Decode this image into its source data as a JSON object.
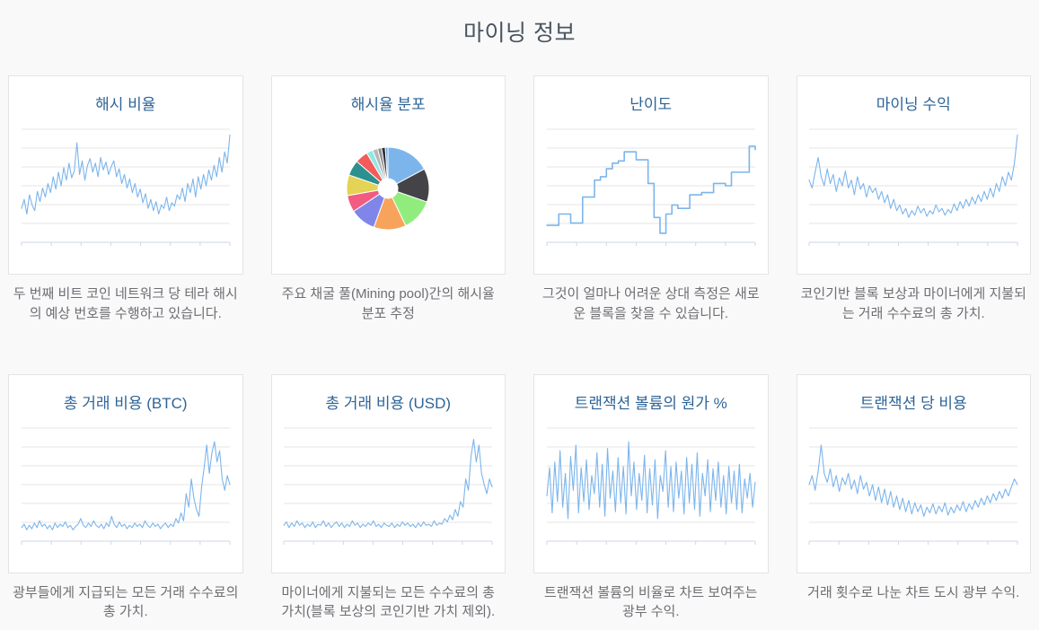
{
  "page": {
    "title": "마이닝 정보"
  },
  "colors": {
    "page_bg": "#f9f9fa",
    "page_title": "#4a5560",
    "card_title": "#2e6497",
    "card_border": "#e4e4e6",
    "description_text": "#6e6e73",
    "accent_line": "#7cb5ec",
    "grid_line": "#e6e6e6",
    "axis_line": "#ccd6eb"
  },
  "cards": [
    {
      "title": "해시 비율",
      "description": "두 번째 비트 코인 네트워크 당 테라 해시의 예상 번호를 수행하고 있습니다."
    },
    {
      "title": "해시율 분포",
      "description": "주요 채굴 풀(Mining pool)간의 해시율 분포 추정"
    },
    {
      "title": "난이도",
      "description": "그것이 얼마나 어려운 상대 측정은 새로운 블록을 찾을 수 있습니다."
    },
    {
      "title": "마이닝 수익",
      "description": "코인기반 블록 보상과 마이너에게 지불되는 거래 수수료의 총 가치."
    },
    {
      "title": "총 거래 비용 (BTC)",
      "description": "광부들에게 지급되는 모든 거래 수수료의 총 가치."
    },
    {
      "title": "총 거래 비용 (USD)",
      "description": "마이너에게 지불되는 모든 수수료의 총 가치(블록 보상의 코인기반 가치 제외)."
    },
    {
      "title": "트랜잭션 볼륨의 원가 %",
      "description": "트랜잭션 볼륨의 비율로 차트 보여주는 광부 수익."
    },
    {
      "title": "트랜잭션 당 비용",
      "description": "거래 횟수로 나눈 차트 도시 광부 수익."
    }
  ],
  "chart_data": [
    {
      "type": "line",
      "title": "해시 비율",
      "ylabel": "",
      "xlabel": "",
      "ylim": [
        0,
        100
      ],
      "grid": true,
      "legend": "none",
      "values": [
        30,
        38,
        25,
        42,
        33,
        28,
        45,
        36,
        48,
        40,
        52,
        44,
        58,
        47,
        62,
        50,
        66,
        55,
        70,
        57,
        63,
        88,
        60,
        72,
        55,
        68,
        74,
        62,
        70,
        58,
        75,
        64,
        71,
        60,
        67,
        72,
        58,
        65,
        52,
        60,
        48,
        56,
        44,
        52,
        40,
        47,
        35,
        43,
        30,
        38,
        28,
        36,
        25,
        33,
        30,
        40,
        28,
        35,
        32,
        42,
        38,
        48,
        36,
        52,
        44,
        56,
        40,
        58,
        47,
        60,
        50,
        64,
        55,
        68,
        58,
        75,
        62,
        80,
        70,
        95
      ]
    },
    {
      "type": "pie",
      "title": "해시율 분포",
      "donut": true,
      "legend": "none",
      "slices": [
        {
          "value": 17,
          "color": "#7cb5ec"
        },
        {
          "value": 13,
          "color": "#434348"
        },
        {
          "value": 12.5,
          "color": "#90ed7d"
        },
        {
          "value": 12.5,
          "color": "#f7a35c"
        },
        {
          "value": 10,
          "color": "#8085e9"
        },
        {
          "value": 6.5,
          "color": "#f15c80"
        },
        {
          "value": 8,
          "color": "#e4d354"
        },
        {
          "value": 6,
          "color": "#2b908f"
        },
        {
          "value": 5,
          "color": "#f45b5b"
        },
        {
          "value": 2.5,
          "color": "#91e8e1"
        },
        {
          "value": 2,
          "color": "#b7b7bb"
        },
        {
          "value": 1.5,
          "color": "#8d8d92"
        },
        {
          "value": 1.5,
          "color": "#2f2f33"
        },
        {
          "value": 1,
          "color": "#6fa8dc"
        }
      ]
    },
    {
      "type": "line",
      "subtype": "step",
      "title": "난이도",
      "ylabel": "",
      "xlabel": "",
      "ylim": [
        0,
        100
      ],
      "grid": true,
      "legend": "none",
      "values": [
        15,
        15,
        25,
        25,
        17,
        17,
        40,
        40,
        55,
        58,
        65,
        70,
        72,
        80,
        80,
        73,
        73,
        52,
        22,
        8,
        25,
        33,
        30,
        30,
        42,
        42,
        44,
        44,
        52,
        52,
        50,
        62,
        62,
        62,
        85,
        82
      ]
    },
    {
      "type": "line",
      "title": "마이닝 수익",
      "ylabel": "",
      "xlabel": "",
      "ylim": [
        0,
        100
      ],
      "grid": true,
      "legend": "none",
      "values": [
        55,
        48,
        62,
        75,
        58,
        50,
        65,
        52,
        60,
        45,
        57,
        50,
        63,
        48,
        55,
        42,
        58,
        47,
        52,
        40,
        50,
        44,
        48,
        38,
        45,
        35,
        42,
        30,
        38,
        28,
        33,
        25,
        30,
        22,
        28,
        24,
        32,
        26,
        30,
        23,
        28,
        25,
        33,
        27,
        30,
        24,
        29,
        26,
        34,
        28,
        36,
        30,
        38,
        32,
        40,
        34,
        42,
        36,
        45,
        38,
        48,
        40,
        52,
        45,
        58,
        50,
        62,
        55,
        70,
        95
      ]
    },
    {
      "type": "line",
      "title": "총 거래 비용 (BTC)",
      "ylabel": "",
      "xlabel": "",
      "ylim": [
        0,
        100
      ],
      "grid": true,
      "legend": "none",
      "values": [
        12,
        15,
        10,
        14,
        11,
        16,
        12,
        18,
        13,
        15,
        11,
        14,
        10,
        16,
        12,
        15,
        13,
        17,
        12,
        14,
        10,
        13,
        15,
        20,
        14,
        12,
        16,
        13,
        18,
        14,
        12,
        15,
        11,
        16,
        13,
        22,
        15,
        12,
        17,
        13,
        15,
        11,
        14,
        12,
        16,
        13,
        15,
        12,
        18,
        14,
        12,
        16,
        13,
        15,
        11,
        14,
        16,
        12,
        15,
        13,
        20,
        16,
        25,
        18,
        42,
        30,
        55,
        38,
        28,
        22,
        48,
        65,
        85,
        60,
        78,
        88,
        70,
        80,
        55,
        45,
        58,
        50
      ]
    },
    {
      "type": "line",
      "title": "총 거래 비용 (USD)",
      "ylabel": "",
      "xlabel": "",
      "ylim": [
        0,
        100
      ],
      "grid": true,
      "legend": "none",
      "values": [
        14,
        17,
        12,
        16,
        13,
        18,
        14,
        16,
        12,
        15,
        13,
        17,
        12,
        15,
        14,
        18,
        13,
        16,
        12,
        15,
        17,
        13,
        16,
        12,
        15,
        13,
        18,
        14,
        16,
        12,
        15,
        13,
        16,
        14,
        18,
        13,
        15,
        12,
        16,
        14,
        13,
        16,
        12,
        15,
        13,
        17,
        14,
        16,
        13,
        15,
        12,
        16,
        13,
        17,
        14,
        15,
        13,
        18,
        14,
        16,
        15,
        20,
        17,
        23,
        19,
        28,
        22,
        35,
        30,
        55,
        45,
        75,
        90,
        70,
        85,
        60,
        50,
        42,
        55,
        48
      ]
    },
    {
      "type": "line",
      "title": "트랜잭션 볼륨의 원가 %",
      "ylabel": "",
      "xlabel": "",
      "ylim": [
        0,
        100
      ],
      "grid": true,
      "legend": "none",
      "values": [
        40,
        65,
        25,
        70,
        35,
        80,
        30,
        60,
        20,
        75,
        45,
        85,
        25,
        65,
        35,
        72,
        28,
        58,
        42,
        78,
        30,
        68,
        22,
        82,
        38,
        62,
        26,
        74,
        34,
        66,
        24,
        88,
        40,
        70,
        28,
        60,
        36,
        76,
        25,
        64,
        32,
        72,
        20,
        58,
        44,
        80,
        30,
        66,
        26,
        70,
        38,
        62,
        24,
        74,
        34,
        68,
        28,
        78,
        22,
        60,
        40,
        72,
        26,
        64,
        36,
        70,
        30,
        58,
        24,
        66,
        34,
        62,
        28,
        68,
        25,
        55,
        38,
        60,
        30,
        52
      ]
    },
    {
      "type": "line",
      "title": "트랜잭션 당 비용",
      "ylabel": "",
      "xlabel": "",
      "ylim": [
        0,
        100
      ],
      "grid": true,
      "legend": "none",
      "values": [
        50,
        58,
        45,
        62,
        85,
        60,
        52,
        64,
        48,
        58,
        44,
        56,
        50,
        60,
        46,
        54,
        42,
        58,
        46,
        52,
        40,
        50,
        36,
        48,
        34,
        46,
        32,
        44,
        30,
        40,
        28,
        38,
        26,
        36,
        24,
        34,
        26,
        32,
        22,
        30,
        25,
        33,
        24,
        31,
        26,
        34,
        23,
        30,
        25,
        32,
        27,
        35,
        26,
        33,
        28,
        36,
        30,
        38,
        32,
        40,
        34,
        42,
        36,
        44,
        38,
        46,
        40,
        48,
        55,
        50
      ]
    }
  ]
}
